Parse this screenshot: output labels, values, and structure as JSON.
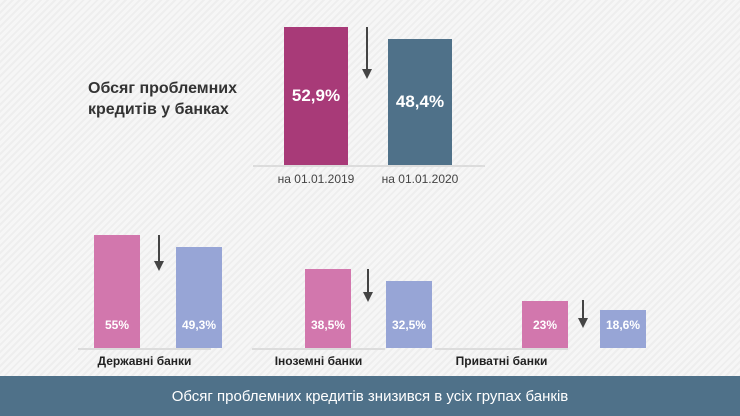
{
  "chart_data": [
    {
      "type": "bar",
      "title": "Обсяг проблемних кредитів у банках",
      "categories": [
        "на 01.01.2019",
        "на 01.01.2020"
      ],
      "values": [
        52.9,
        48.4
      ],
      "labels": [
        "52,9%",
        "48,4%"
      ],
      "colors": [
        "#a83a78",
        "#4f7189"
      ]
    },
    {
      "type": "bar",
      "group_label": "Державні банки",
      "values": [
        55,
        49.3
      ],
      "labels": [
        "55%",
        "49,3%"
      ],
      "colors": [
        "#d277ad",
        "#97a5d6"
      ]
    },
    {
      "type": "bar",
      "group_label": "Іноземні банки",
      "values": [
        38.5,
        32.5
      ],
      "labels": [
        "38,5%",
        "32,5%"
      ],
      "colors": [
        "#d277ad",
        "#97a5d6"
      ]
    },
    {
      "type": "bar",
      "group_label": "Приватні банки",
      "values": [
        23,
        18.6
      ],
      "labels": [
        "23%",
        "18,6%"
      ],
      "colors": [
        "#d277ad",
        "#97a5d6"
      ]
    }
  ],
  "footer": "Обсяг проблемних кредитів знизився в усіх групах банків"
}
